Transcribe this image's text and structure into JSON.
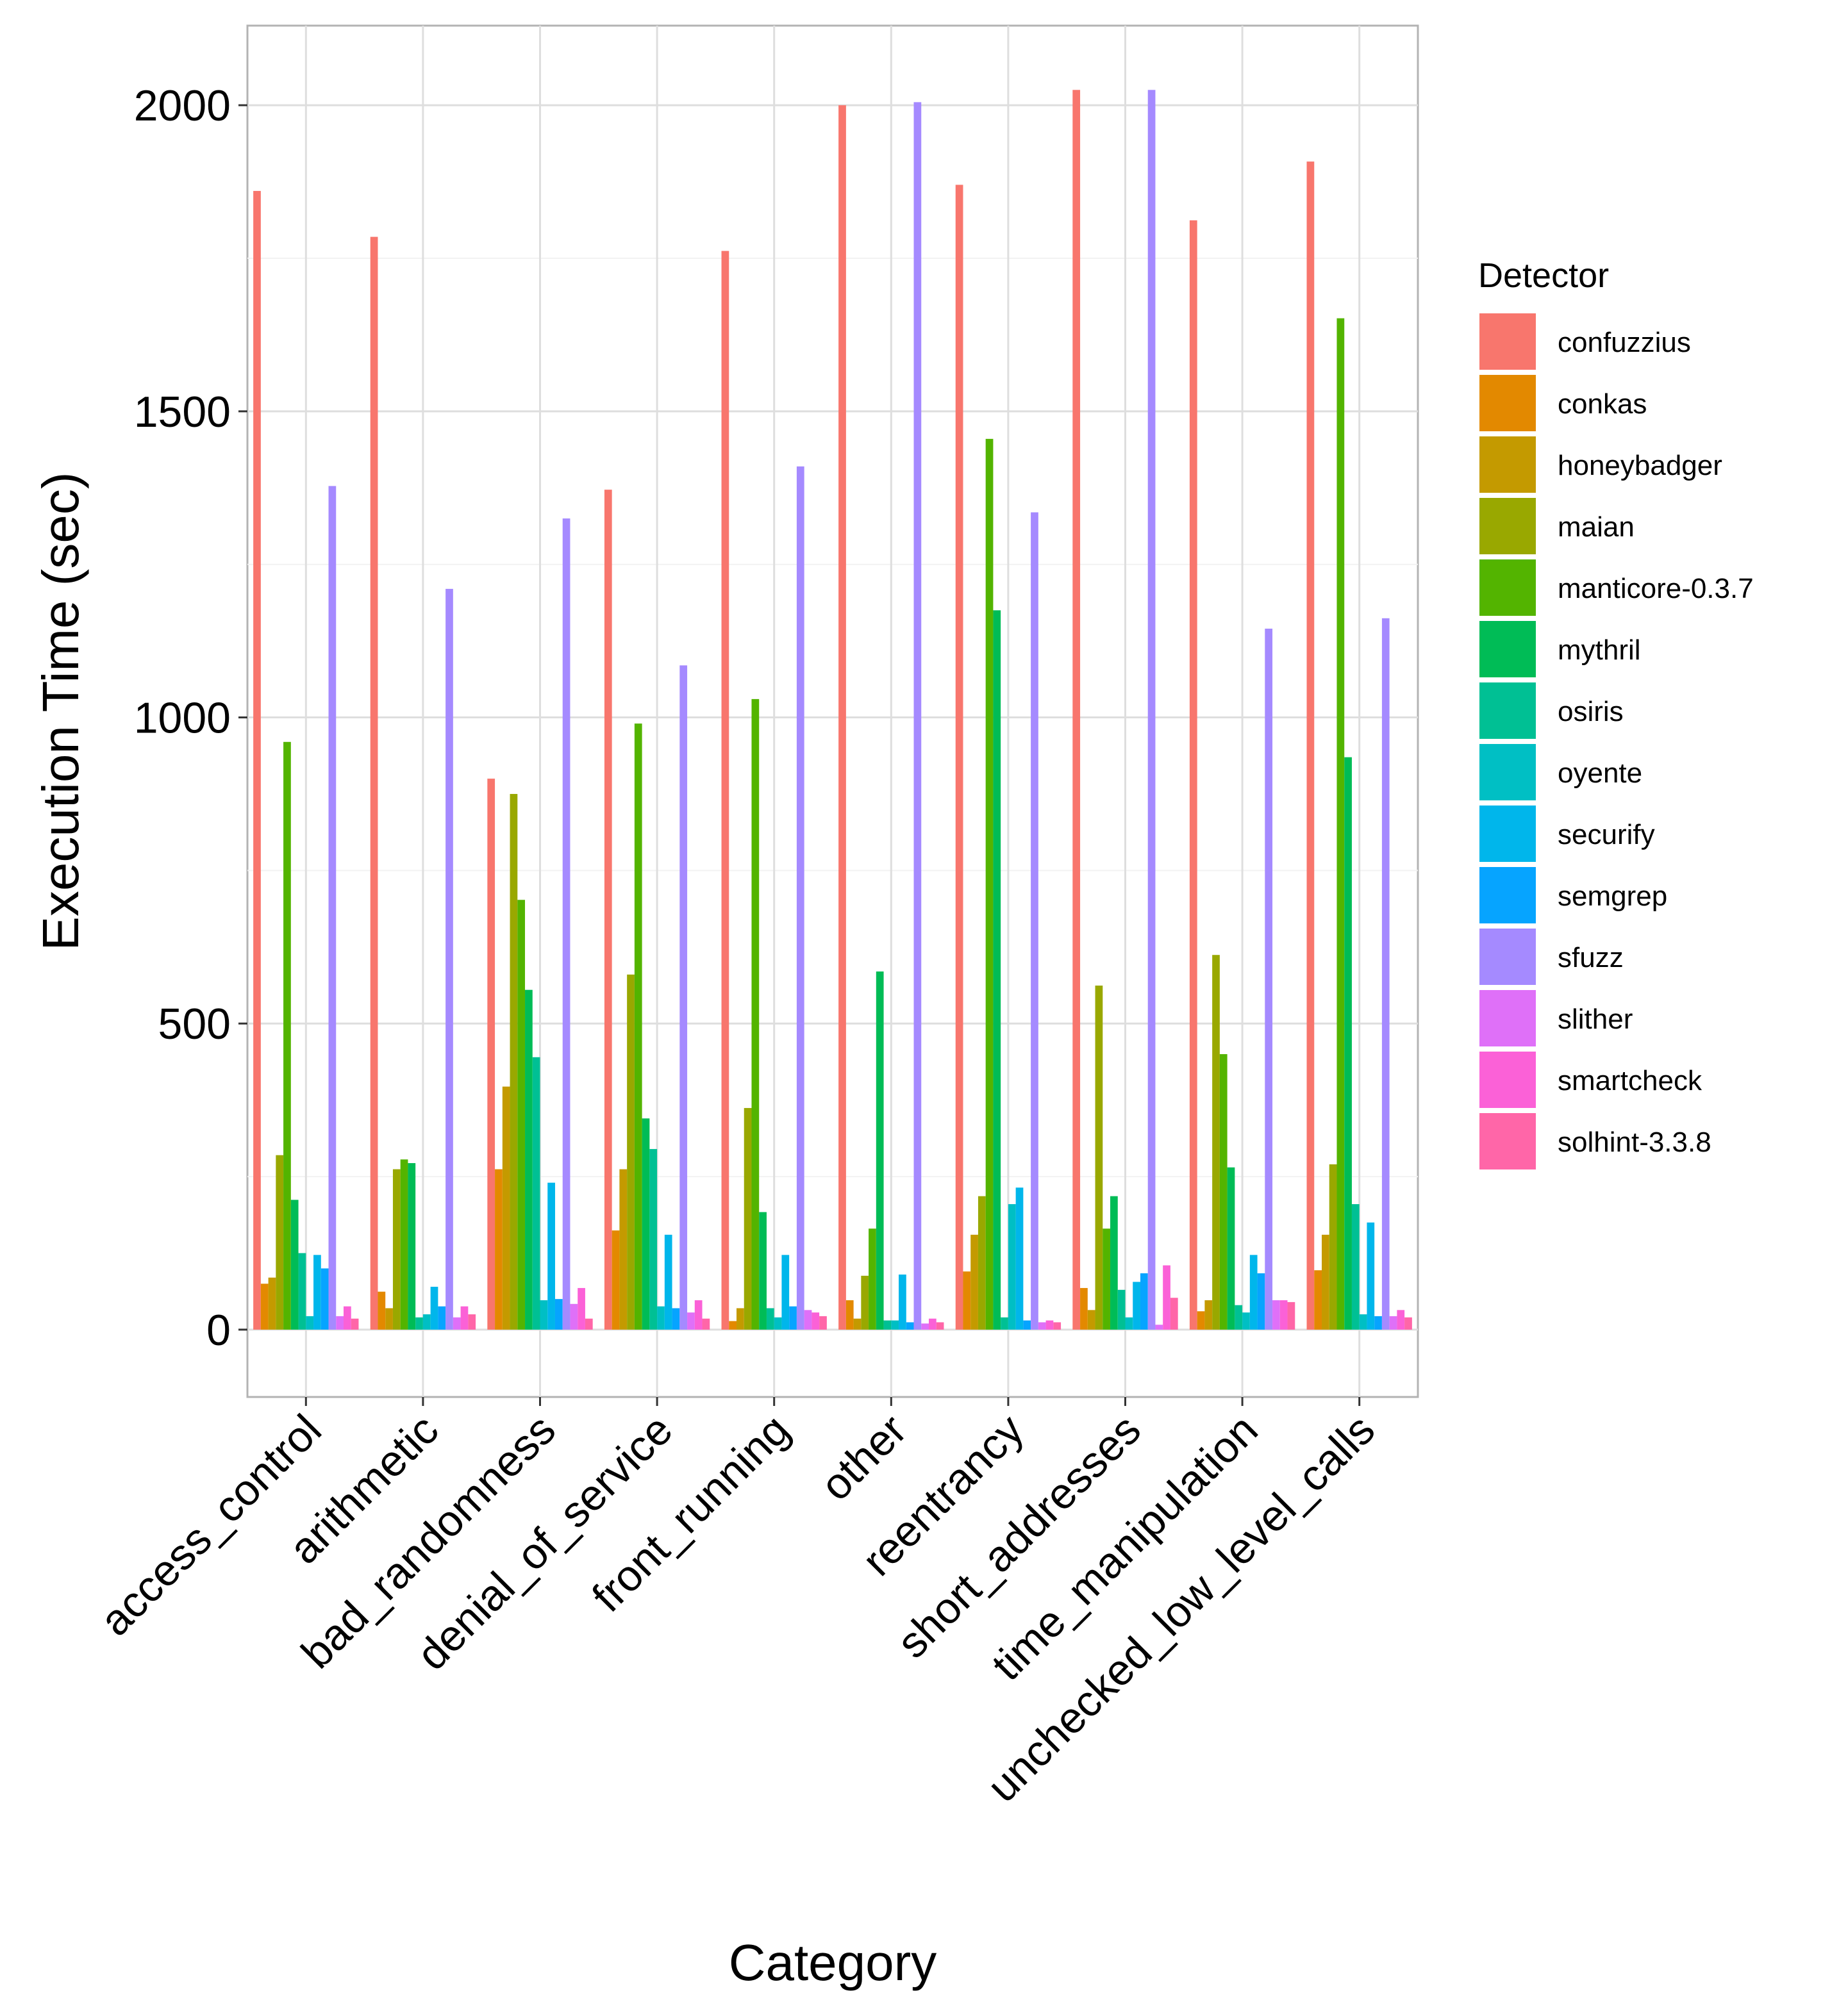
{
  "chart_data": {
    "type": "bar",
    "title": "",
    "xlabel": "Category",
    "ylabel": "Execution Time (sec)",
    "ylim": [
      -110,
      2130
    ],
    "yticks": [
      0,
      500,
      1000,
      1500,
      2000
    ],
    "grid": true,
    "legend_title": "Detector",
    "legend_position": "right",
    "categories": [
      "access_control",
      "arithmetic",
      "bad_randomness",
      "denial_of_service",
      "front_running",
      "other",
      "reentrancy",
      "short_addresses",
      "time_manipulation",
      "unchecked_low_level_calls"
    ],
    "series": [
      {
        "name": "confuzzius",
        "color": "#F8766D",
        "values": [
          1860,
          1785,
          900,
          1372,
          1762,
          2000,
          1870,
          2025,
          1812,
          1908
        ]
      },
      {
        "name": "conkas",
        "color": "#E38900",
        "values": [
          75,
          62,
          262,
          162,
          14,
          48,
          95,
          68,
          30,
          97
        ]
      },
      {
        "name": "honeybadger",
        "color": "#C49A00",
        "values": [
          85,
          35,
          397,
          262,
          35,
          18,
          155,
          32,
          48,
          155
        ]
      },
      {
        "name": "maian",
        "color": "#99A800",
        "values": [
          285,
          262,
          875,
          580,
          362,
          88,
          218,
          562,
          612,
          270
        ]
      },
      {
        "name": "manticore-0.3.7",
        "color": "#53B400",
        "values": [
          960,
          278,
          702,
          990,
          1030,
          165,
          1455,
          165,
          450,
          1652
        ]
      },
      {
        "name": "mythril",
        "color": "#00BC56",
        "values": [
          212,
          272,
          555,
          345,
          192,
          585,
          1175,
          218,
          265,
          935
        ]
      },
      {
        "name": "osiris",
        "color": "#00C094",
        "values": [
          125,
          20,
          445,
          295,
          35,
          15,
          20,
          65,
          40,
          205
        ]
      },
      {
        "name": "oyente",
        "color": "#00BFC4",
        "values": [
          22,
          25,
          48,
          38,
          20,
          15,
          205,
          20,
          28,
          25
        ]
      },
      {
        "name": "securify",
        "color": "#00B6EB",
        "values": [
          122,
          70,
          240,
          155,
          122,
          90,
          232,
          78,
          122,
          175
        ]
      },
      {
        "name": "semgrep",
        "color": "#06A4FF",
        "values": [
          100,
          38,
          50,
          35,
          38,
          12,
          15,
          92,
          92,
          22
        ]
      },
      {
        "name": "sfuzz",
        "color": "#A58AFF",
        "values": [
          1378,
          1210,
          1325,
          1085,
          1410,
          2005,
          1335,
          2025,
          1145,
          1162
        ]
      },
      {
        "name": "slither",
        "color": "#DF70F8",
        "values": [
          22,
          20,
          42,
          28,
          32,
          10,
          12,
          8,
          48,
          22
        ]
      },
      {
        "name": "smartcheck",
        "color": "#FB61D7",
        "values": [
          38,
          38,
          68,
          48,
          28,
          18,
          15,
          105,
          48,
          32
        ]
      },
      {
        "name": "solhint-3.3.8",
        "color": "#FF66A8",
        "values": [
          18,
          25,
          18,
          18,
          22,
          12,
          12,
          52,
          45,
          20
        ]
      }
    ]
  }
}
